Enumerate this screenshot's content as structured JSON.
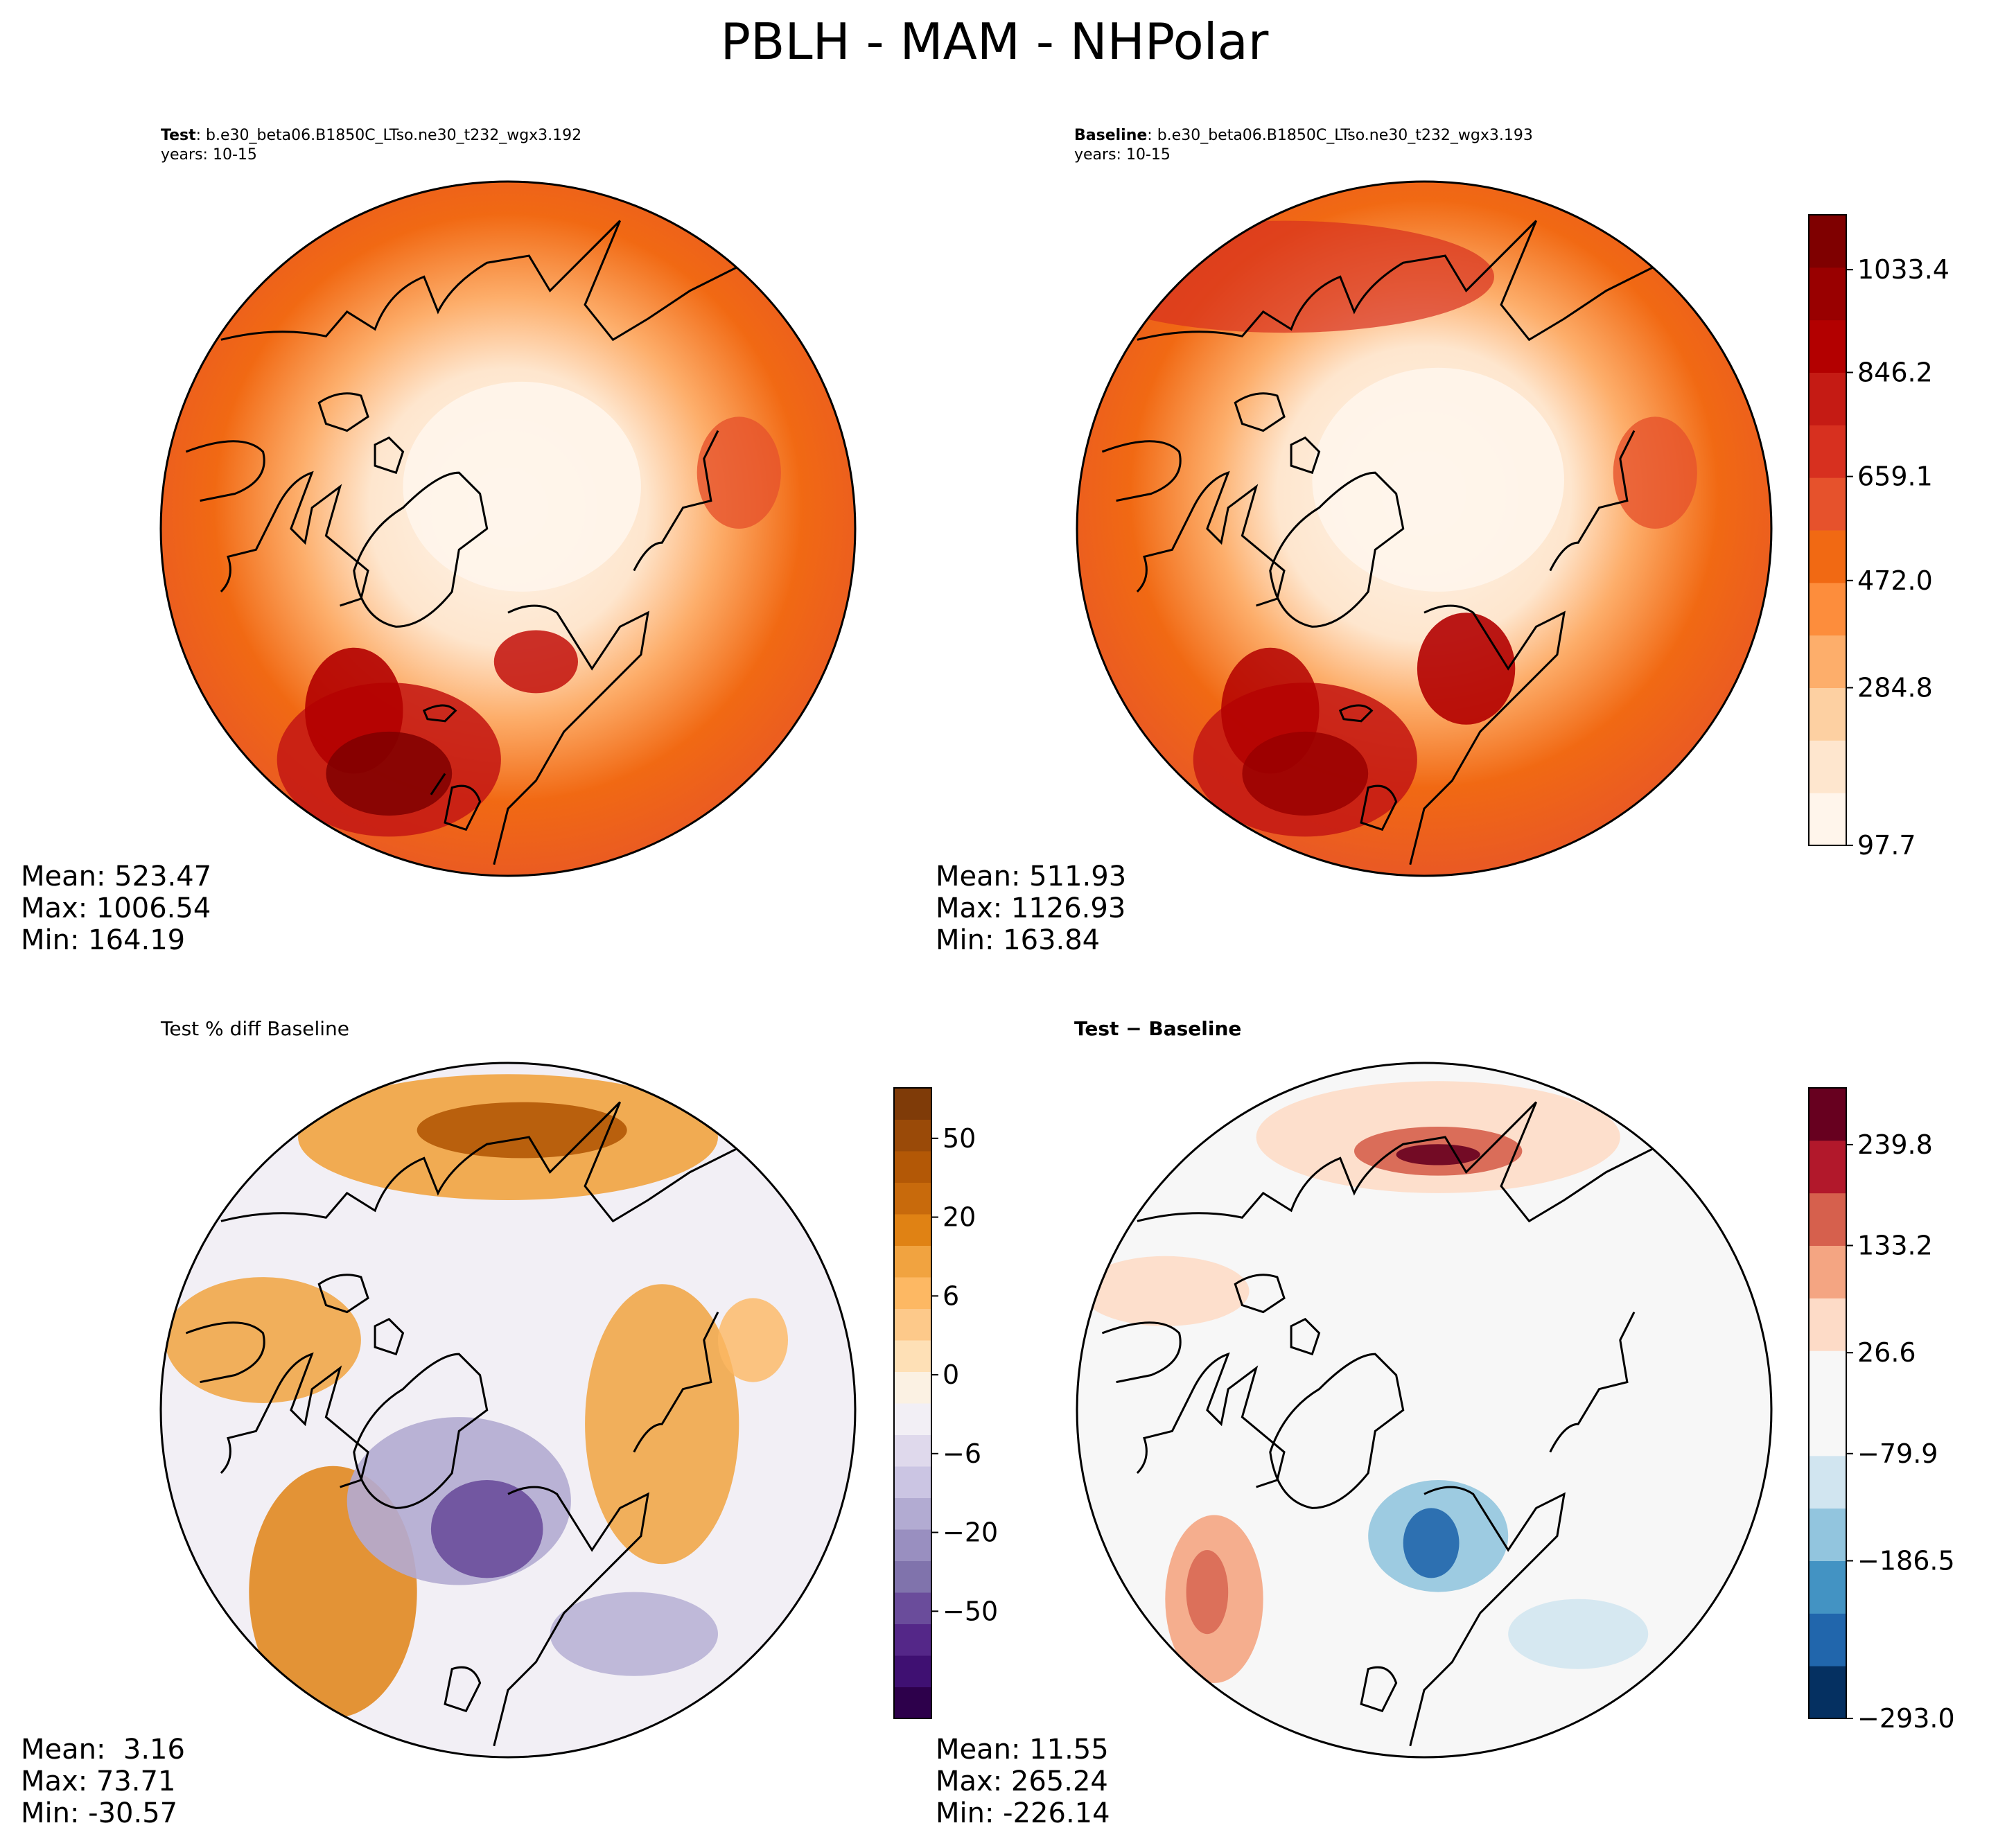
{
  "figure": {
    "title": "PBLH - MAM - NHPolar"
  },
  "panels": {
    "test": {
      "label_bold": "Test",
      "label_rest": ": b.e30_beta06.B1850C_LTso.ne30_t232_wgx3.192",
      "years": "years: 10-15",
      "stats": {
        "mean": "Mean: 523.47",
        "max": "Max: 1006.54",
        "min": "Min: 164.19"
      }
    },
    "baseline": {
      "label_bold": "Baseline",
      "label_rest": ": b.e30_beta06.B1850C_LTso.ne30_t232_wgx3.193",
      "years": "years: 10-15",
      "stats": {
        "mean": "Mean: 511.93",
        "max": "Max: 1126.93",
        "min": "Min: 163.84"
      }
    },
    "pct_diff": {
      "title": "Test % diff Baseline",
      "stats": {
        "mean": "Mean:  3.16",
        "max": "Max: 73.71",
        "min": "Min: -30.57"
      }
    },
    "abs_diff": {
      "title": "Test − Baseline",
      "stats": {
        "mean": "Mean: 11.55",
        "max": "Max: 265.24",
        "min": "Min: -226.14"
      }
    }
  },
  "colorbars": {
    "field": {
      "ticks": [
        "1033.4",
        "846.2",
        "659.1",
        "472.0",
        "284.8",
        "97.7"
      ],
      "colors": [
        "#fff5eb",
        "#fee6ce",
        "#fdd0a2",
        "#fdae6b",
        "#fd8d3c",
        "#f16913",
        "#e6522c",
        "#d7301f",
        "#c51b14",
        "#b30000",
        "#990000",
        "#7f0000"
      ]
    },
    "pct": {
      "ticks": [
        "50",
        "20",
        "6",
        "0",
        "−6",
        "−20",
        "−50"
      ],
      "colors": [
        "#2d004b",
        "#3f1072",
        "#542788",
        "#6a4c9b",
        "#8073ac",
        "#998fc0",
        "#b2abd2",
        "#cbc5e3",
        "#dfd9ec",
        "#f2eff5",
        "#fbf1e3",
        "#fee0b6",
        "#fdc98a",
        "#fdb863",
        "#f1a340",
        "#e08214",
        "#c86a0c",
        "#b35806",
        "#9a4a08",
        "#7f3b08"
      ]
    },
    "diff": {
      "ticks": [
        "239.8",
        "133.2",
        "26.6",
        "−79.9",
        "−186.5",
        "−293.0"
      ],
      "colors": [
        "#053061",
        "#2166ac",
        "#4393c3",
        "#92c5de",
        "#d1e5f0",
        "#f7f7f7",
        "#f7f7f7",
        "#fddbc7",
        "#f4a582",
        "#d6604d",
        "#b2182b",
        "#67001f"
      ]
    }
  }
}
